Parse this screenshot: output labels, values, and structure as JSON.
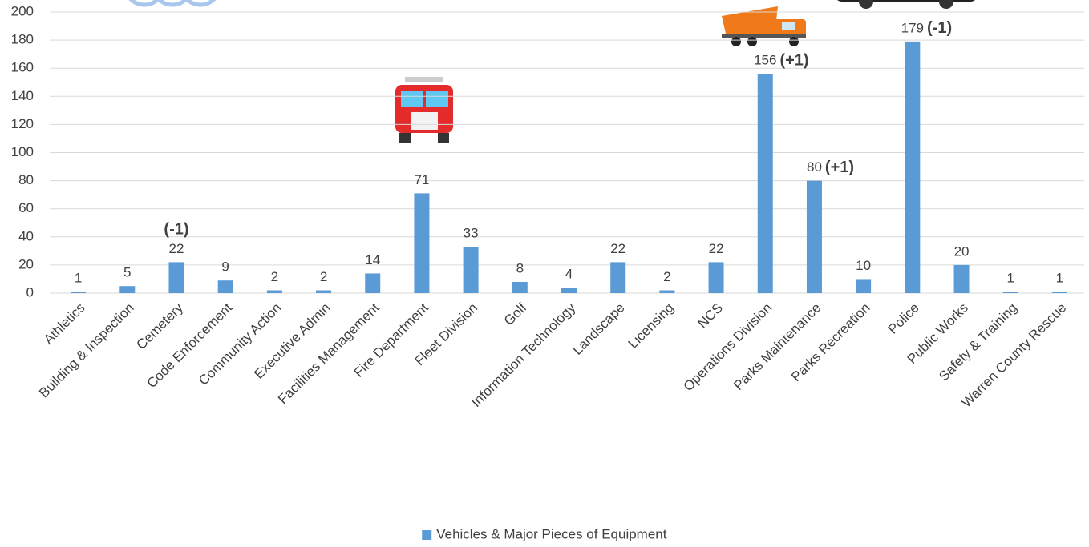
{
  "chart_data": {
    "type": "bar",
    "categories": [
      "Athletics",
      "Building & Inspection",
      "Cemetery",
      "Code Enforcement",
      "Community Action",
      "Executive Admin",
      "Facilities Management",
      "Fire Department",
      "Fleet Division",
      "Golf",
      "Information Technology",
      "Landscape",
      "Licensing",
      "NCS",
      "Operations Division",
      "Parks Maintenance",
      "Parks Recreation",
      "Police",
      "Public Works",
      "Safety & Training",
      "Warren County Rescue"
    ],
    "series": [
      {
        "name": "Vehicles & Major Pieces of Equipment",
        "color": "#5b9bd5",
        "values": [
          1,
          5,
          22,
          9,
          2,
          2,
          14,
          71,
          33,
          8,
          4,
          22,
          2,
          22,
          156,
          80,
          10,
          179,
          20,
          1,
          1
        ]
      }
    ],
    "notes": [
      null,
      null,
      {
        "text": "(-1)",
        "color": "#ff0000"
      },
      null,
      null,
      null,
      null,
      null,
      null,
      null,
      null,
      null,
      null,
      null,
      {
        "text": "(+1)",
        "color": "#002060"
      },
      {
        "text": "(+1)",
        "color": "#002060"
      },
      null,
      {
        "text": "(-1)",
        "color": "#ff0000"
      },
      null,
      null,
      null
    ],
    "ylim": [
      0,
      200
    ],
    "yticks": [
      0,
      20,
      40,
      60,
      80,
      100,
      120,
      140,
      160,
      180,
      200
    ],
    "grid": true,
    "legend": "bottom"
  }
}
